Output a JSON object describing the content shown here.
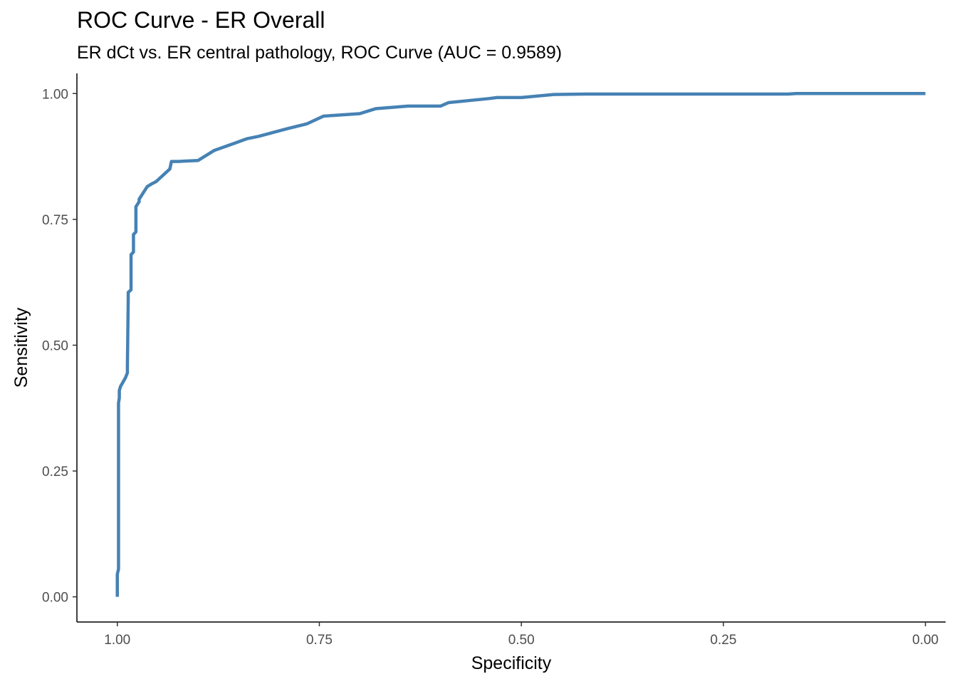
{
  "chart_data": {
    "type": "line",
    "title": "ROC Curve - ER Overall",
    "subtitle": "ER dCt vs. ER central pathology, ROC Curve (AUC = 0.9589)",
    "xlabel": "Specificity",
    "ylabel": "Sensitivity",
    "xlim": [
      1.05,
      -0.025
    ],
    "x_reversed": true,
    "ylim": [
      -0.05,
      1.04
    ],
    "x_ticks": [
      1.0,
      0.75,
      0.5,
      0.25,
      0.0
    ],
    "x_tick_labels": [
      "1.00",
      "0.75",
      "0.50",
      "0.25",
      "0.00"
    ],
    "y_ticks": [
      0.0,
      0.25,
      0.5,
      0.75,
      1.0
    ],
    "y_tick_labels": [
      "0.00",
      "0.25",
      "0.50",
      "0.75",
      "1.00"
    ],
    "grid": false,
    "line_color": "#4682B4",
    "series": [
      {
        "specificity": [
          1.0,
          1.0,
          0.9985,
          0.9985,
          0.9975,
          0.9975,
          0.996,
          0.99,
          0.9875,
          0.9875,
          0.9865,
          0.9865,
          0.983,
          0.983,
          0.98,
          0.98,
          0.977,
          0.977,
          0.973,
          0.973,
          0.963,
          0.958,
          0.952,
          0.935,
          0.933,
          0.925,
          0.9,
          0.88,
          0.857,
          0.84,
          0.825,
          0.79,
          0.765,
          0.745,
          0.7,
          0.68,
          0.64,
          0.6,
          0.59,
          0.54,
          0.53,
          0.5,
          0.46,
          0.42,
          0.36,
          0.25,
          0.17,
          0.16,
          0.15,
          0.1,
          0.05,
          0.0
        ],
        "sensitivity": [
          0.0,
          0.045,
          0.055,
          0.385,
          0.395,
          0.41,
          0.418,
          0.435,
          0.445,
          0.46,
          0.59,
          0.605,
          0.61,
          0.68,
          0.685,
          0.72,
          0.725,
          0.775,
          0.785,
          0.79,
          0.815,
          0.82,
          0.825,
          0.85,
          0.865,
          0.865,
          0.867,
          0.887,
          0.9,
          0.91,
          0.915,
          0.93,
          0.94,
          0.955,
          0.96,
          0.97,
          0.975,
          0.975,
          0.982,
          0.99,
          0.992,
          0.992,
          0.998,
          0.999,
          0.999,
          0.999,
          0.999,
          1.0,
          1.0,
          1.0,
          1.0,
          1.0
        ]
      }
    ]
  }
}
